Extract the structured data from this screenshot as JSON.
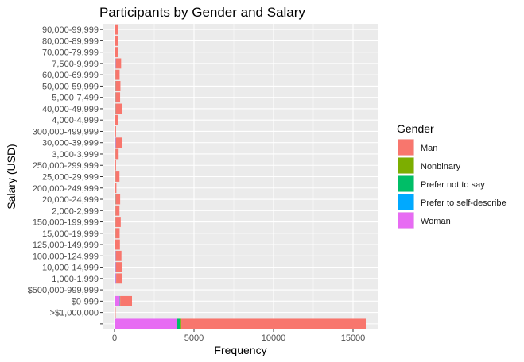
{
  "chart_data": {
    "type": "bar",
    "orientation": "horizontal",
    "stacked": true,
    "title": "Participants by Gender and Salary",
    "xlabel": "Frequency",
    "ylabel": "Salary (USD)",
    "xlim": [
      -750,
      16600
    ],
    "xticks": [
      0,
      5000,
      10000,
      15000
    ],
    "grid": true,
    "legend_position": "right",
    "legend_title": "Gender",
    "categories": [
      "90,000-99,999",
      "80,000-89,999",
      "70,000-79,999",
      "7,500-9,999",
      "60,000-69,999",
      "50,000-59,999",
      "5,000-7,499",
      "40,000-49,999",
      "4,000-4,999",
      "300,000-499,999",
      "30,000-39,999",
      "3,000-3,999",
      "250,000-299,999",
      "25,000-29,999",
      "200,000-249,999",
      "20,000-24,999",
      "2,000-2,999",
      "150,000-199,999",
      "15,000-19,999",
      "125,000-149,999",
      "100,000-124,999",
      "10,000-14,999",
      "1,000-1,999",
      "$500,000-999,999",
      "$0-999",
      ">$1,000,000",
      ""
    ],
    "series": [
      {
        "name": "Woman",
        "color": "#E76BF3",
        "values": [
          35,
          30,
          40,
          70,
          50,
          60,
          60,
          60,
          40,
          10,
          80,
          50,
          10,
          50,
          15,
          60,
          50,
          50,
          50,
          40,
          70,
          80,
          90,
          5,
          330,
          10,
          3900
        ]
      },
      {
        "name": "Prefer to self-describe",
        "color": "#00A9FF",
        "values": [
          2,
          2,
          2,
          3,
          2,
          3,
          3,
          3,
          2,
          1,
          3,
          2,
          1,
          2,
          1,
          3,
          2,
          2,
          2,
          2,
          3,
          3,
          3,
          0,
          5,
          0,
          40
        ]
      },
      {
        "name": "Prefer not to say",
        "color": "#00BE67",
        "values": [
          5,
          5,
          5,
          8,
          5,
          6,
          6,
          6,
          5,
          2,
          8,
          5,
          2,
          6,
          2,
          8,
          6,
          6,
          6,
          5,
          8,
          8,
          8,
          1,
          15,
          1,
          220
        ]
      },
      {
        "name": "Nonbinary",
        "color": "#7CAE00",
        "values": [
          3,
          3,
          3,
          5,
          3,
          4,
          4,
          4,
          3,
          1,
          5,
          3,
          1,
          4,
          1,
          5,
          4,
          4,
          4,
          3,
          5,
          5,
          5,
          0,
          10,
          0,
          40
        ]
      },
      {
        "name": "Man",
        "color": "#F8766D",
        "values": [
          155,
          200,
          200,
          330,
          260,
          300,
          280,
          380,
          200,
          80,
          360,
          200,
          80,
          250,
          100,
          280,
          250,
          330,
          260,
          290,
          350,
          380,
          370,
          40,
          740,
          60,
          11600
        ]
      }
    ],
    "legend_order": [
      "Man",
      "Nonbinary",
      "Prefer not to say",
      "Prefer to self-describe",
      "Woman"
    ]
  }
}
